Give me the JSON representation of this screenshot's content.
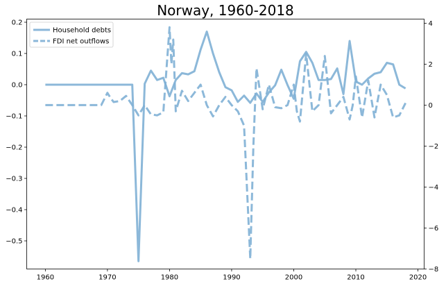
{
  "chart_data": {
    "type": "line",
    "title": "Norway, 1960-2018",
    "xlabel": "",
    "ylabel_left": "",
    "ylabel_right": "",
    "xlim": [
      1957,
      2021
    ],
    "x_ticks": [
      1960,
      1970,
      1980,
      1990,
      2000,
      2010,
      2020
    ],
    "ylim_left": [
      -0.59,
      0.21
    ],
    "y_ticks_left": [
      "0.2",
      "0.1",
      "0.0",
      "−0.1",
      "−0.2",
      "−0.3",
      "−0.4",
      "−0.5"
    ],
    "y_tick_values_left": [
      0.2,
      0.1,
      0.0,
      -0.1,
      -0.2,
      -0.3,
      -0.4,
      -0.5
    ],
    "ylim_right": [
      -8.0,
      4.2
    ],
    "y_ticks_right": [
      "4",
      "2",
      "0",
      "−2",
      "−4",
      "−6",
      "−8"
    ],
    "y_tick_values_right": [
      4,
      2,
      0,
      -2,
      -4,
      -6,
      -8
    ],
    "grid": false,
    "legend_position": "top-left",
    "color": "#7fb0d5",
    "series": [
      {
        "name": "Household debts",
        "style": "solid",
        "axis": "left",
        "x": [
          1960,
          1961,
          1962,
          1963,
          1964,
          1965,
          1966,
          1967,
          1968,
          1969,
          1970,
          1971,
          1972,
          1973,
          1974,
          1975,
          1976,
          1977,
          1978,
          1979,
          1980,
          1981,
          1982,
          1983,
          1984,
          1985,
          1986,
          1987,
          1988,
          1989,
          1990,
          1991,
          1992,
          1993,
          1994,
          1995,
          1996,
          1997,
          1998,
          1999,
          2000,
          2001,
          2002,
          2003,
          2004,
          2005,
          2006,
          2007,
          2008,
          2009,
          2010,
          2011,
          2012,
          2013,
          2014,
          2015,
          2016,
          2017,
          2018
        ],
        "values": [
          0,
          0,
          0,
          0,
          0,
          0,
          0,
          0,
          0,
          0,
          0,
          0,
          0,
          0,
          0,
          -0.565,
          0.003,
          0.045,
          0.015,
          0.022,
          -0.037,
          0.015,
          0.037,
          0.033,
          0.043,
          0.112,
          0.17,
          0.1,
          0.04,
          -0.008,
          -0.018,
          -0.055,
          -0.035,
          -0.058,
          -0.028,
          -0.055,
          -0.025,
          -0.002,
          0.048,
          -0.001,
          -0.045,
          0.075,
          0.105,
          0.07,
          0.015,
          0.015,
          0.018,
          0.052,
          -0.03,
          0.14,
          0.01,
          0.0,
          0.02,
          0.035,
          0.04,
          0.07,
          0.065,
          0.0,
          -0.012
        ]
      },
      {
        "name": "FDI net outflows",
        "style": "dashed",
        "axis": "right",
        "x": [
          1960,
          1961,
          1962,
          1963,
          1964,
          1965,
          1966,
          1967,
          1968,
          1969,
          1970,
          1970.5,
          1971,
          1972,
          1973,
          1974,
          1975,
          1976,
          1977,
          1978,
          1979,
          1980,
          1980.3,
          1980.6,
          1981,
          1982,
          1983,
          1984,
          1985,
          1986,
          1987,
          1988,
          1989,
          1990,
          1991,
          1992,
          1993,
          1993.5,
          1994,
          1995,
          1996,
          1997,
          1998,
          1999,
          2000,
          2000.5,
          2001,
          2002,
          2003,
          2004,
          2005,
          2006,
          2007,
          2008,
          2009,
          2009.5,
          2010,
          2011,
          2012,
          2013,
          2014,
          2015,
          2016,
          2017,
          2018
        ],
        "values": [
          0,
          0,
          0,
          0,
          0,
          0,
          0,
          0,
          0,
          0,
          0.6,
          0.35,
          0.15,
          0.2,
          0.45,
          0.0,
          -0.5,
          0.0,
          -0.45,
          -0.5,
          -0.35,
          3.8,
          2.0,
          3.2,
          -0.3,
          0.7,
          0.2,
          0.6,
          1.0,
          0.0,
          -0.55,
          0.0,
          0.4,
          0.0,
          -0.3,
          -1.0,
          -7.5,
          -2.0,
          1.8,
          -0.2,
          1.0,
          -0.1,
          -0.15,
          0.0,
          1.0,
          -0.3,
          -0.8,
          2.5,
          -0.3,
          0.0,
          2.4,
          -0.4,
          0.0,
          0.4,
          -0.7,
          0.0,
          1.4,
          -0.6,
          1.2,
          -0.6,
          1.0,
          0.5,
          -0.6,
          -0.5,
          0.1
        ]
      }
    ]
  }
}
